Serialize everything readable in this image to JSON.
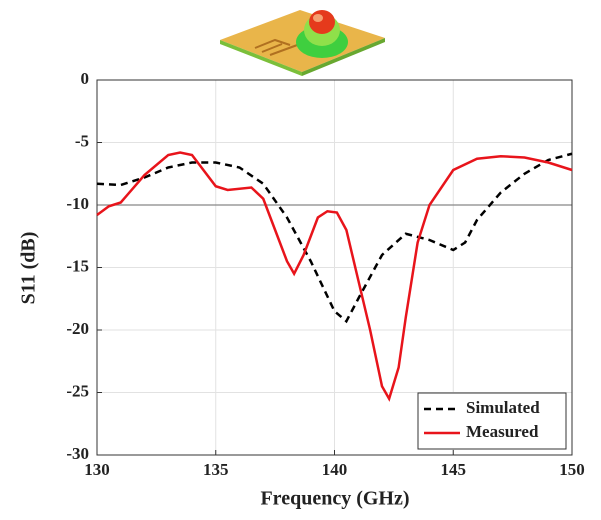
{
  "chart_data": {
    "type": "line",
    "x_label": "Frequency (GHz)",
    "y_label": "S11 (dB)",
    "xlim": [
      130,
      150
    ],
    "xticks": [
      130,
      135,
      140,
      145,
      150
    ],
    "ylim": [
      -30,
      0
    ],
    "yticks": [
      0,
      -5,
      -10,
      -15,
      -20,
      -25,
      -30
    ],
    "grid": true,
    "reference_line": -10,
    "legend": "lower right",
    "series": [
      {
        "name": "Simulated",
        "color": "#000000",
        "dash": true,
        "x": [
          130,
          131,
          132,
          133,
          134,
          135,
          136,
          137,
          138,
          139,
          140,
          140.5,
          141,
          142,
          143,
          144,
          145,
          145.5,
          146,
          147,
          148,
          149,
          150
        ],
        "values": [
          -8.3,
          -8.4,
          -7.8,
          -7.0,
          -6.6,
          -6.6,
          -7.0,
          -8.3,
          -11,
          -14.5,
          -18.5,
          -19.3,
          -17.5,
          -14,
          -12.3,
          -12.8,
          -13.6,
          -13,
          -11.2,
          -9,
          -7.5,
          -6.4,
          -5.9
        ]
      },
      {
        "name": "Measured",
        "color": "#e8141b",
        "dash": false,
        "x": [
          130,
          130.5,
          131,
          132,
          133,
          133.5,
          134,
          135,
          135.5,
          136.5,
          137,
          137.5,
          138,
          138.3,
          138.7,
          139.3,
          139.7,
          140.1,
          140.5,
          141,
          141.5,
          142,
          142.3,
          142.7,
          143,
          143.5,
          144,
          145,
          146,
          147,
          148,
          149,
          150
        ],
        "values": [
          -10.8,
          -10.1,
          -9.8,
          -7.6,
          -6.0,
          -5.8,
          -6.0,
          -8.5,
          -8.8,
          -8.6,
          -9.5,
          -12,
          -14.5,
          -15.5,
          -14,
          -11,
          -10.5,
          -10.6,
          -12,
          -16,
          -20,
          -24.5,
          -25.5,
          -23,
          -19,
          -13,
          -10,
          -7.2,
          -6.3,
          -6.1,
          -6.2,
          -6.6,
          -7.2
        ]
      }
    ]
  }
}
